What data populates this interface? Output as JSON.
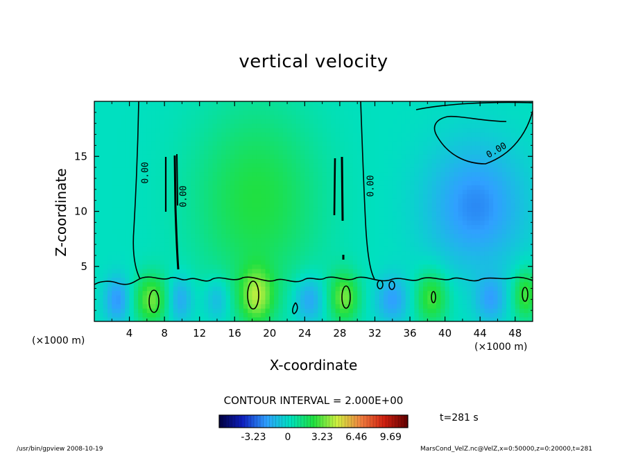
{
  "chart_data": {
    "type": "heatmap",
    "title": "vertical velocity",
    "xlabel": "X-coordinate",
    "ylabel": "Z-coordinate",
    "x_unit_left": "(×1000 m)",
    "x_unit_right": "(×1000 m)",
    "xlim": [
      0,
      50
    ],
    "ylim": [
      0,
      20
    ],
    "x_ticks": [
      "4",
      "8",
      "12",
      "16",
      "20",
      "24",
      "28",
      "32",
      "36",
      "40",
      "44",
      "48"
    ],
    "x_tick_values": [
      4,
      8,
      12,
      16,
      20,
      24,
      28,
      32,
      36,
      40,
      44,
      48
    ],
    "y_ticks": [
      "5",
      "10",
      "15"
    ],
    "y_tick_values": [
      5,
      10,
      15
    ],
    "contour_labels": [
      "0.00",
      "0.00",
      "0.00",
      "0.00"
    ],
    "contour_interval": "CONTOUR INTERVAL = 2.000E+00",
    "colorbar_ticks": [
      "-3.23",
      "0",
      "3.23",
      "6.46",
      "9.69"
    ],
    "colorbar_values": [
      -3.23,
      0,
      3.23,
      6.46,
      9.69
    ],
    "colorbar_range": [
      -6.46,
      11.3
    ],
    "colorscale": [
      "#000040",
      "#1020c0",
      "#30a0ff",
      "#00e0c0",
      "#20e040",
      "#d0f040",
      "#f08040",
      "#d02010",
      "#600000"
    ],
    "field": {
      "background": 0.2,
      "blobs": [
        {
          "x": 18.5,
          "z": 11,
          "sx": 5,
          "sz": 6,
          "w": 2.2
        },
        {
          "x": 43.5,
          "z": 10.5,
          "sx": 4,
          "sz": 4,
          "w": -2.6
        },
        {
          "x": 6.5,
          "z": 2,
          "sx": 1.3,
          "sz": 1.6,
          "w": 3.2
        },
        {
          "x": 18.5,
          "z": 2.3,
          "sx": 1.4,
          "sz": 1.8,
          "w": 3.4
        },
        {
          "x": 28.5,
          "z": 2.2,
          "sx": 1.2,
          "sz": 1.6,
          "w": 3.2
        },
        {
          "x": 38.5,
          "z": 2.2,
          "sx": 1.3,
          "sz": 1.7,
          "w": 2.8
        },
        {
          "x": 49.2,
          "z": 2.5,
          "sx": 1.0,
          "sz": 1.6,
          "w": 2.8
        },
        {
          "x": 2.6,
          "z": 2,
          "sx": 1.0,
          "sz": 1.5,
          "w": -2.4
        },
        {
          "x": 9.8,
          "z": 2,
          "sx": 1.0,
          "sz": 1.5,
          "w": -2.0
        },
        {
          "x": 14,
          "z": 2,
          "sx": 1.0,
          "sz": 1.4,
          "w": -1.6
        },
        {
          "x": 24.5,
          "z": 2,
          "sx": 1.2,
          "sz": 1.5,
          "w": -2.2
        },
        {
          "x": 34,
          "z": 2,
          "sx": 1.3,
          "sz": 1.5,
          "w": -2.2
        },
        {
          "x": 45.2,
          "z": 2,
          "sx": 1.2,
          "sz": 1.5,
          "w": -2.0
        }
      ]
    }
  },
  "footer": {
    "time": "t=281 s",
    "program": "/usr/bin/gpview   2008-10-19",
    "source": "MarsCond_VelZ.nc@VelZ,x=0:50000,z=0:20000,t=281"
  }
}
